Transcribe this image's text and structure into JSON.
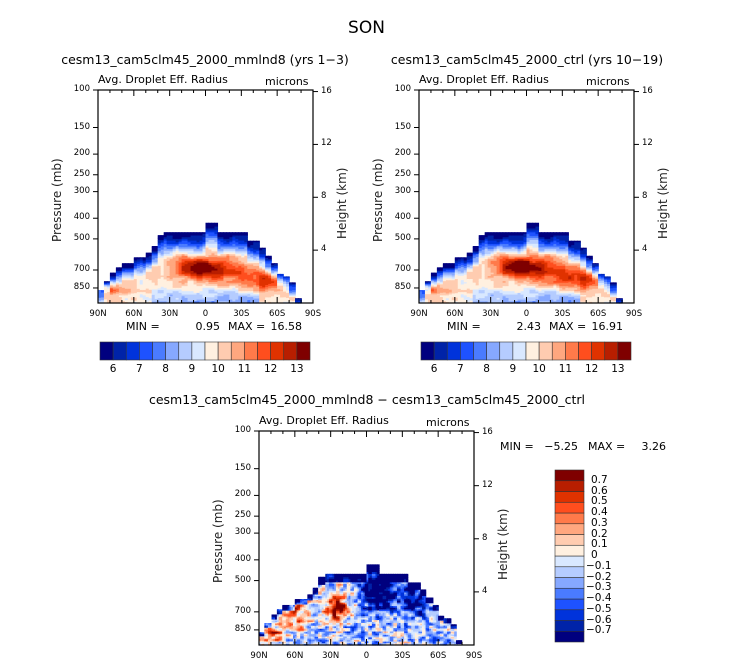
{
  "figure": {
    "season_title": "SON"
  },
  "chart_data": [
    {
      "type": "heatmap",
      "id": "panel-mmlnd8",
      "title": "cesm13_cam5clm45_2000_mmlnd8 (yrs 1-3)",
      "left_subtitle": "Avg. Droplet Eff. Radius",
      "right_subtitle": "microns",
      "xlabel": "",
      "ylabel": "Pressure (mb)",
      "y2label": "Height (km)",
      "x_ticks": [
        "90N",
        "60N",
        "30N",
        "0",
        "30S",
        "60S",
        "90S"
      ],
      "x_range": [
        90,
        -90
      ],
      "y_ticks": [
        "100",
        "150",
        "200",
        "250",
        "300",
        "400",
        "500",
        "700",
        "850"
      ],
      "y_range_mb": [
        100,
        1000
      ],
      "y2_ticks": [
        "16",
        "12",
        "8",
        "4"
      ],
      "min_label": "MIN =",
      "min_value": "0.95",
      "max_label": "MAX =",
      "max_value": "16.58",
      "colorbar": {
        "orientation": "horizontal",
        "levels": [
          6,
          6.5,
          7,
          7.5,
          8,
          8.5,
          9,
          9.5,
          10,
          10.5,
          11,
          11.5,
          12,
          12.5,
          13
        ],
        "labels": [
          "6",
          "7",
          "8",
          "9",
          "10",
          "11",
          "12",
          "13"
        ]
      },
      "field": {
        "description": "Low-level cloud droplet radius; max (~13+) near 700 mb around 10N-10S, values below 6 at cloud top",
        "core_lat": 5,
        "core_mb": 690,
        "core_value": 13.6,
        "secondary_lat": -50,
        "secondary_mb": 790,
        "secondary_value": 12.5,
        "nh_high_lat": 85,
        "nh_high_mb": 860,
        "nh_high_value": 12.2
      }
    },
    {
      "type": "heatmap",
      "id": "panel-ctrl",
      "title": "cesm13_cam5clm45_2000_ctrl (yrs 10-19)",
      "left_subtitle": "Avg. Droplet Eff. Radius",
      "right_subtitle": "microns",
      "xlabel": "",
      "ylabel": "Pressure (mb)",
      "y2label": "Height (km)",
      "x_ticks": [
        "90N",
        "60N",
        "30N",
        "0",
        "30S",
        "60S",
        "90S"
      ],
      "x_range": [
        90,
        -90
      ],
      "y_ticks": [
        "100",
        "150",
        "200",
        "250",
        "300",
        "400",
        "500",
        "700",
        "850"
      ],
      "y_range_mb": [
        100,
        1000
      ],
      "y2_ticks": [
        "16",
        "12",
        "8",
        "4"
      ],
      "min_label": "MIN =",
      "min_value": "2.43",
      "max_label": "MAX =",
      "max_value": "16.91",
      "colorbar": {
        "orientation": "horizontal",
        "levels": [
          6,
          6.5,
          7,
          7.5,
          8,
          8.5,
          9,
          9.5,
          10,
          10.5,
          11,
          11.5,
          12,
          12.5,
          13
        ],
        "labels": [
          "6",
          "7",
          "8",
          "9",
          "10",
          "11",
          "12",
          "13"
        ]
      },
      "field": {
        "description": "Similar to mmlnd8 with max near 700 mb 10N-10S, slightly weaker blue cap",
        "core_lat": 5,
        "core_mb": 680,
        "core_value": 13.8,
        "secondary_lat": -45,
        "secondary_mb": 780,
        "secondary_value": 12.6,
        "nh_high_lat": 85,
        "nh_high_mb": 860,
        "nh_high_value": 12.0
      }
    },
    {
      "type": "heatmap",
      "id": "panel-diff",
      "title": "cesm13_cam5clm45_2000_mmlnd8 - cesm13_cam5clm45_2000_ctrl",
      "left_subtitle": "Avg. Droplet Eff. Radius",
      "right_subtitle": "microns",
      "xlabel": "",
      "ylabel": "Pressure (mb)",
      "y2label": "Height (km)",
      "x_ticks": [
        "90N",
        "60N",
        "30N",
        "0",
        "30S",
        "60S",
        "90S"
      ],
      "x_range": [
        90,
        -90
      ],
      "y_ticks": [
        "100",
        "150",
        "200",
        "250",
        "300",
        "400",
        "500",
        "700",
        "850"
      ],
      "y_range_mb": [
        100,
        1000
      ],
      "y2_ticks": [
        "16",
        "12",
        "8",
        "4"
      ],
      "min_label": "MIN =",
      "min_value": "-5.25",
      "max_label": "MAX =",
      "max_value": "3.26",
      "colorbar": {
        "orientation": "vertical",
        "levels": [
          -0.7,
          -0.6,
          -0.5,
          -0.4,
          -0.3,
          -0.2,
          -0.1,
          0,
          0.1,
          0.2,
          0.3,
          0.4,
          0.5,
          0.6,
          0.7
        ],
        "labels": [
          "0.7",
          "0.6",
          "0.5",
          "0.4",
          "0.3",
          "0.2",
          "0.1",
          "0",
          "-0.1",
          "-0.2",
          "-0.3",
          "-0.4",
          "-0.5",
          "-0.6",
          "-0.7"
        ]
      },
      "field": {
        "description": "Positive differences (red) 20N-70N near 600-750 mb, negative (blue) 10N-40S and at cloud top",
        "pos_core_lat": 25,
        "pos_core_mb": 680,
        "pos_core_value": 0.9,
        "pos_secondary_lat": 60,
        "pos_secondary_mb": 720,
        "pos_secondary_value": 0.5,
        "neg_core_lat": -10,
        "neg_core_mb": 560,
        "neg_core_value": -0.9
      }
    }
  ],
  "cloud_top_mb_by_lat": {
    "lat": [
      90,
      85,
      80,
      75,
      70,
      65,
      60,
      55,
      50,
      45,
      40,
      35,
      30,
      25,
      20,
      15,
      10,
      5,
      0,
      -5,
      -10,
      -15,
      -20,
      -25,
      -30,
      -35,
      -40,
      -45,
      -50,
      -55,
      -60,
      -65,
      -70,
      -75,
      -80,
      -85,
      -90
    ],
    "top_mb": [
      870,
      790,
      720,
      680,
      650,
      650,
      610,
      610,
      580,
      540,
      480,
      465,
      465,
      465,
      465,
      465,
      465,
      465,
      420,
      420,
      465,
      465,
      465,
      465,
      465,
      510,
      510,
      550,
      600,
      650,
      730,
      750,
      800,
      950,
      1000,
      1000,
      1000
    ]
  },
  "palette": {
    "blue_red_16": [
      "#00007f",
      "#0023a8",
      "#0033db",
      "#1e52ff",
      "#4a7bff",
      "#86a8ff",
      "#b5ccff",
      "#d9e8ff",
      "#fff0e0",
      "#ffccb0",
      "#ffa77f",
      "#ff7a4a",
      "#ff4e1e",
      "#e03200",
      "#b81e00",
      "#7f0000"
    ]
  }
}
